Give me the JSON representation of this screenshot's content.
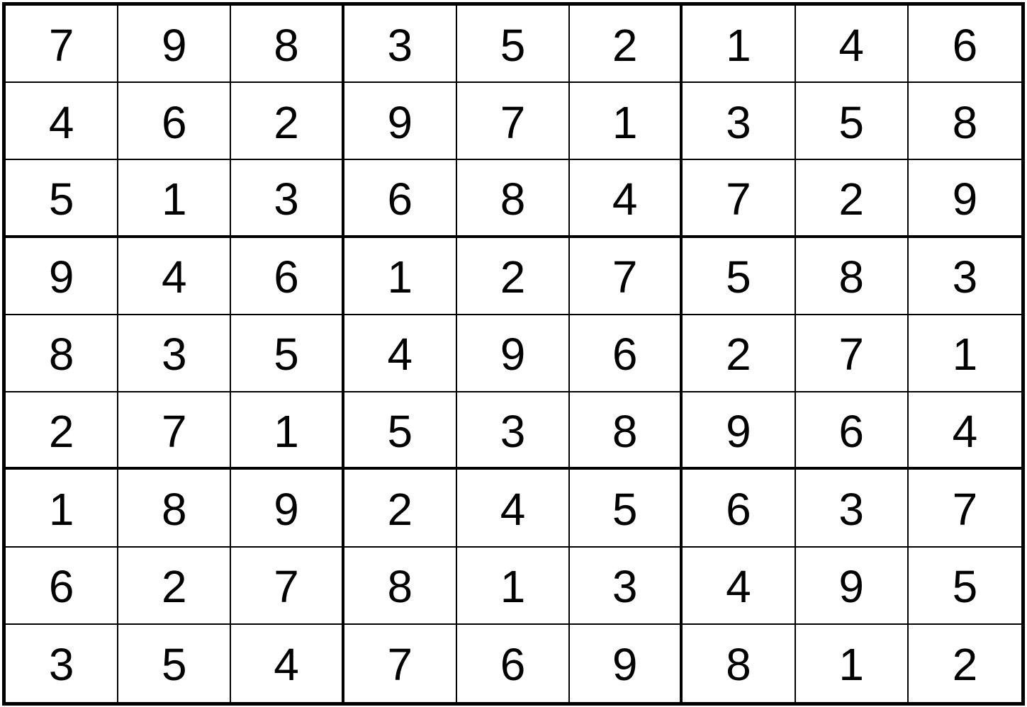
{
  "grid": [
    [
      "7",
      "9",
      "8",
      "3",
      "5",
      "2",
      "1",
      "4",
      "6"
    ],
    [
      "4",
      "6",
      "2",
      "9",
      "7",
      "1",
      "3",
      "5",
      "8"
    ],
    [
      "5",
      "1",
      "3",
      "6",
      "8",
      "4",
      "7",
      "2",
      "9"
    ],
    [
      "9",
      "4",
      "6",
      "1",
      "2",
      "7",
      "5",
      "8",
      "3"
    ],
    [
      "8",
      "3",
      "5",
      "4",
      "9",
      "6",
      "2",
      "7",
      "1"
    ],
    [
      "2",
      "7",
      "1",
      "5",
      "3",
      "8",
      "9",
      "6",
      "4"
    ],
    [
      "1",
      "8",
      "9",
      "2",
      "4",
      "5",
      "6",
      "3",
      "7"
    ],
    [
      "6",
      "2",
      "7",
      "8",
      "1",
      "3",
      "4",
      "9",
      "5"
    ],
    [
      "3",
      "5",
      "4",
      "7",
      "6",
      "9",
      "8",
      "1",
      "2"
    ]
  ]
}
